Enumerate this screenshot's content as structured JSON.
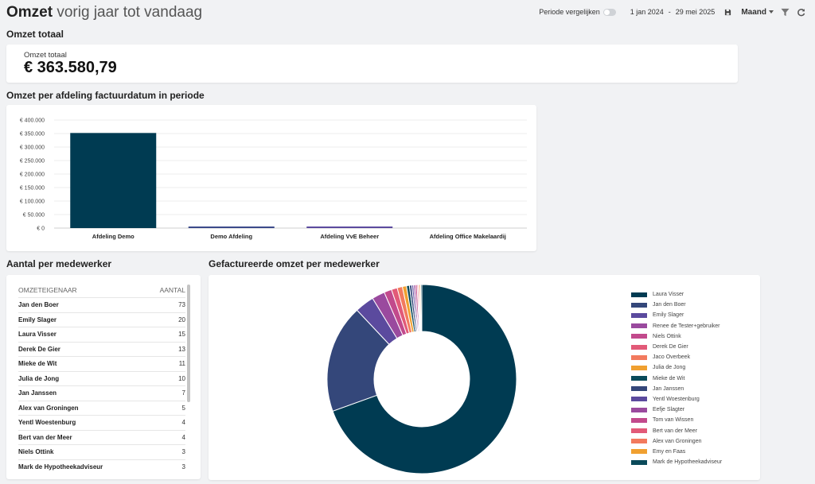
{
  "header": {
    "title_bold": "Omzet",
    "title_rest": "vorig jaar tot vandaag"
  },
  "toolbar": {
    "compare_label": "Periode vergelijken",
    "date_from": "1 jan 2024",
    "date_sep": "-",
    "date_to": "29 mei 2025",
    "period": "Maand"
  },
  "total": {
    "section_title": "Omzet totaal",
    "label": "Omzet totaal",
    "value": "€ 363.580,79"
  },
  "department": {
    "section_title": "Omzet per afdeling factuurdatum in periode"
  },
  "table": {
    "section_title": "Aantal per medewerker",
    "col_owner": "OMZETEIGENAAR",
    "col_count": "AANTAL",
    "rows": [
      {
        "name": "Jan den Boer",
        "count": "73"
      },
      {
        "name": "Emily Slager",
        "count": "20"
      },
      {
        "name": "Laura Visser",
        "count": "15"
      },
      {
        "name": "Derek De Gier",
        "count": "13"
      },
      {
        "name": "Mieke de Wit",
        "count": "11"
      },
      {
        "name": "Julia de Jong",
        "count": "10"
      },
      {
        "name": "Jan Janssen",
        "count": "7"
      },
      {
        "name": "Alex van Groningen",
        "count": "5"
      },
      {
        "name": "Yentl Woestenburg",
        "count": "4"
      },
      {
        "name": "Bert van der Meer",
        "count": "4"
      },
      {
        "name": "Niels Ottink",
        "count": "3"
      },
      {
        "name": "Mark de Hypotheekadviseur",
        "count": "3"
      }
    ]
  },
  "donut": {
    "section_title": "Gefactureerde omzet per medewerker"
  },
  "chart_data": [
    {
      "type": "bar",
      "title": "Omzet per afdeling factuurdatum in periode",
      "categories": [
        "Afdeling Demo",
        "Demo Afdeling",
        "Afdeling VvE Beheer",
        "Afdeling Office Makelaardij"
      ],
      "values": [
        352000,
        4500,
        3500,
        0
      ],
      "ylim": [
        0,
        400000
      ],
      "yticks": [
        0,
        50000,
        100000,
        150000,
        200000,
        250000,
        300000,
        350000,
        400000
      ],
      "ytick_labels": [
        "€ 0",
        "€ 50.000",
        "€ 100.000",
        "€ 150.000",
        "€ 200.000",
        "€ 250.000",
        "€ 300.000",
        "€ 350.000",
        "€ 400.000"
      ],
      "colors": [
        "#003b52",
        "#3b4a8a",
        "#5b4a9e",
        "#5b4a9e"
      ],
      "grid": true
    },
    {
      "type": "pie",
      "title": "Gefactureerde omzet per medewerker",
      "labels": [
        "Laura Visser",
        "Jan den Boer",
        "Emily Slager",
        "Renee de Tester+gebruiker",
        "Niels Ottink",
        "Derek De Gier",
        "Jaco Overbeek",
        "Julia de Jong",
        "Mieke de Wit",
        "Jan Janssen",
        "Yentl Woestenburg",
        "Eefje Slagter",
        "Tom van Wissen",
        "Bert van der Meer",
        "Alex van Groningen",
        "Emy en Faas",
        "Mark de Hypotheekadviseur"
      ],
      "values": [
        69.5,
        18.5,
        3.3,
        2.2,
        1.3,
        1.0,
        0.9,
        0.7,
        0.5,
        0.4,
        0.3,
        0.3,
        0.3,
        0.2,
        0.2,
        0.2,
        0.2
      ],
      "colors": [
        "#003b52",
        "#34477a",
        "#5b4a9e",
        "#9a4a9e",
        "#c24a8c",
        "#e25a78",
        "#f27a5e",
        "#f0a030",
        "#0a4a5a",
        "#34477a",
        "#5b4a9e",
        "#9a4a9e",
        "#c24a8c",
        "#e25a78",
        "#f27a5e",
        "#f0a030",
        "#0a4a5a"
      ],
      "legend": "right",
      "donut": true
    }
  ]
}
